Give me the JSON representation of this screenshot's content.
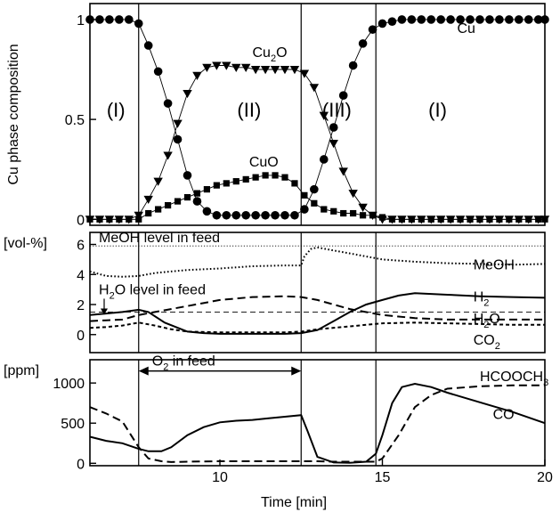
{
  "chart_data": {
    "type": "line",
    "xlabel": "Time [min]",
    "xlim": [
      6,
      20
    ],
    "xticks": [
      {
        "value": 10,
        "label": "10"
      },
      {
        "value": 15,
        "label": "15"
      },
      {
        "value": 20,
        "label": "20"
      }
    ],
    "event_times": [
      7.5,
      12.5,
      14.8
    ],
    "panels": [
      {
        "id": "phase",
        "type": "line",
        "ylabel": "Cu phase composition",
        "ylim": [
          -0.03,
          1.08
        ],
        "yticks": [
          {
            "value": 0,
            "label": "0"
          },
          {
            "value": 0.5,
            "label": "0.5"
          },
          {
            "value": 1,
            "label": "1"
          }
        ],
        "region_labels": [
          {
            "label": "(I)",
            "x": 6.8,
            "y": 0.55
          },
          {
            "label": "(II)",
            "x": 10.9,
            "y": 0.55
          },
          {
            "label": "(III)",
            "x": 13.6,
            "y": 0.55
          },
          {
            "label": "(I)",
            "x": 16.7,
            "y": 0.55
          }
        ],
        "series": [
          {
            "name": "Cu",
            "marker": "circle",
            "label": {
              "text": "Cu",
              "sub": "",
              "tail": "",
              "x": 17.3,
              "y": 0.96
            },
            "x": [
              6.0,
              6.3,
              6.6,
              6.9,
              7.2,
              7.5,
              7.8,
              8.1,
              8.4,
              8.7,
              9.0,
              9.3,
              9.6,
              9.9,
              10.2,
              10.5,
              10.8,
              11.1,
              11.4,
              11.7,
              12.0,
              12.3,
              12.6,
              12.9,
              13.2,
              13.5,
              13.8,
              14.1,
              14.4,
              14.7,
              15.0,
              15.3,
              15.6,
              15.9,
              16.2,
              16.5,
              16.8,
              17.1,
              17.4,
              17.7,
              18.0,
              18.3,
              18.6,
              18.9,
              19.2,
              19.5,
              19.8,
              20.0
            ],
            "y": [
              1.0,
              1.0,
              1.0,
              1.0,
              1.0,
              0.98,
              0.87,
              0.74,
              0.58,
              0.4,
              0.22,
              0.09,
              0.04,
              0.02,
              0.02,
              0.02,
              0.02,
              0.02,
              0.02,
              0.02,
              0.02,
              0.02,
              0.05,
              0.15,
              0.3,
              0.46,
              0.62,
              0.77,
              0.88,
              0.95,
              0.98,
              0.99,
              1.0,
              1.0,
              1.0,
              1.0,
              1.0,
              1.0,
              1.0,
              1.0,
              1.0,
              1.0,
              1.0,
              1.0,
              1.0,
              1.0,
              1.0,
              1.0
            ]
          },
          {
            "name": "Cu2O",
            "marker": "triangle-down",
            "label": {
              "text": "Cu",
              "sub": "2",
              "tail": "O",
              "x": 11.0,
              "y": 0.84
            },
            "x": [
              6.0,
              6.3,
              6.6,
              6.9,
              7.2,
              7.5,
              7.8,
              8.1,
              8.4,
              8.7,
              9.0,
              9.3,
              9.6,
              9.9,
              10.2,
              10.5,
              10.8,
              11.1,
              11.4,
              11.7,
              12.0,
              12.3,
              12.6,
              12.9,
              13.2,
              13.5,
              13.8,
              14.1,
              14.4,
              14.7,
              15.0,
              15.3,
              15.6,
              15.9,
              16.2,
              16.5,
              16.8,
              17.1,
              17.4,
              17.7,
              18.0,
              18.3,
              18.6,
              18.9,
              19.2,
              19.5,
              19.8,
              20.0
            ],
            "y": [
              0.0,
              0.0,
              0.0,
              0.0,
              0.0,
              0.02,
              0.1,
              0.19,
              0.32,
              0.48,
              0.63,
              0.72,
              0.76,
              0.77,
              0.77,
              0.76,
              0.76,
              0.75,
              0.75,
              0.75,
              0.75,
              0.75,
              0.73,
              0.66,
              0.52,
              0.38,
              0.24,
              0.13,
              0.06,
              0.02,
              0.0,
              0.0,
              0.0,
              0.0,
              0.0,
              0.0,
              0.0,
              0.0,
              0.0,
              0.0,
              0.0,
              0.0,
              0.0,
              0.0,
              0.0,
              0.0,
              0.0,
              0.0
            ]
          },
          {
            "name": "CuO",
            "marker": "square",
            "label": {
              "text": "CuO",
              "sub": "",
              "tail": "",
              "x": 10.9,
              "y": 0.29
            },
            "x": [
              6.0,
              6.3,
              6.6,
              6.9,
              7.2,
              7.5,
              7.8,
              8.1,
              8.4,
              8.7,
              9.0,
              9.3,
              9.6,
              9.9,
              10.2,
              10.5,
              10.8,
              11.1,
              11.4,
              11.7,
              12.0,
              12.3,
              12.6,
              12.9,
              13.2,
              13.5,
              13.8,
              14.1,
              14.4,
              14.7,
              15.0,
              15.3,
              15.6,
              15.9,
              16.2,
              16.5,
              16.8,
              17.1,
              17.4,
              17.7,
              18.0,
              18.3,
              18.6,
              18.9,
              19.2,
              19.5,
              19.8,
              20.0
            ],
            "y": [
              0.0,
              0.0,
              0.0,
              0.0,
              0.0,
              0.0,
              0.03,
              0.05,
              0.07,
              0.09,
              0.11,
              0.13,
              0.15,
              0.17,
              0.18,
              0.19,
              0.2,
              0.21,
              0.22,
              0.22,
              0.21,
              0.18,
              0.12,
              0.08,
              0.05,
              0.04,
              0.03,
              0.03,
              0.02,
              0.02,
              0.01,
              0.0,
              0.0,
              0.0,
              0.0,
              0.0,
              0.0,
              0.0,
              0.0,
              0.0,
              0.0,
              0.0,
              0.0,
              0.0,
              0.0,
              0.0,
              0.0,
              0.0
            ]
          }
        ]
      },
      {
        "id": "gas",
        "type": "line",
        "ylabel": "[vol-%]",
        "ylim": [
          -1.2,
          6.8
        ],
        "yticks": [
          {
            "value": 0,
            "label": "0"
          },
          {
            "value": 2,
            "label": "2"
          },
          {
            "value": 4,
            "label": "4"
          },
          {
            "value": 6,
            "label": "6"
          }
        ],
        "reference_lines": [
          {
            "value": 5.9,
            "label": "MeOH level in feed",
            "style": "dotted"
          },
          {
            "value": 1.5,
            "label": "H",
            "sub": "2",
            "tail": "O level in feed",
            "style": "dashed"
          }
        ],
        "series": [
          {
            "name": "MeOH",
            "style": "dotted",
            "label": {
              "text": "MeOH",
              "sub": "",
              "tail": "",
              "x": 17.8,
              "y": 4.7
            },
            "x": [
              6.0,
              6.5,
              7.0,
              7.5,
              8.0,
              9.0,
              10.0,
              11.0,
              12.0,
              12.5,
              12.6,
              12.8,
              13.0,
              13.5,
              14.0,
              15.0,
              16.0,
              17.0,
              18.0,
              19.0,
              20.0
            ],
            "y": [
              4.2,
              3.9,
              3.85,
              3.9,
              4.1,
              4.3,
              4.4,
              4.55,
              4.6,
              4.6,
              5.2,
              5.7,
              5.8,
              5.6,
              5.4,
              5.0,
              4.85,
              4.75,
              4.7,
              4.65,
              4.7
            ]
          },
          {
            "name": "H2",
            "style": "solid",
            "label": {
              "text": "H",
              "sub": "2",
              "tail": "",
              "x": 17.8,
              "y": 2.55
            },
            "x": [
              6.0,
              6.5,
              7.0,
              7.5,
              7.8,
              8.3,
              9.0,
              9.5,
              10.0,
              11.0,
              12.0,
              12.5,
              13.0,
              13.5,
              14.0,
              14.5,
              15.0,
              15.5,
              16.0,
              17.0,
              18.0,
              19.0,
              20.0
            ],
            "y": [
              1.3,
              1.4,
              1.5,
              1.65,
              1.5,
              0.8,
              0.2,
              0.1,
              0.05,
              0.05,
              0.05,
              0.1,
              0.3,
              0.9,
              1.5,
              2.0,
              2.3,
              2.6,
              2.75,
              2.65,
              2.55,
              2.5,
              2.45
            ]
          },
          {
            "name": "H2O",
            "style": "dashed",
            "label": {
              "text": "H",
              "sub": "2",
              "tail": "O",
              "x": 17.8,
              "y": 1.1
            },
            "x": [
              6.0,
              6.5,
              7.0,
              7.5,
              8.0,
              9.0,
              10.0,
              11.0,
              12.0,
              12.5,
              13.0,
              13.5,
              14.0,
              15.0,
              16.0,
              17.0,
              18.0,
              19.0,
              20.0
            ],
            "y": [
              0.9,
              0.95,
              1.0,
              1.3,
              1.5,
              1.9,
              2.3,
              2.5,
              2.55,
              2.5,
              2.3,
              2.0,
              1.7,
              1.3,
              1.1,
              1.0,
              1.0,
              1.0,
              1.0
            ]
          },
          {
            "name": "CO2",
            "style": "short-dashed",
            "label": {
              "text": "CO",
              "sub": "2",
              "tail": "",
              "x": 17.8,
              "y": -0.3
            },
            "x": [
              6.0,
              6.5,
              7.0,
              7.5,
              8.0,
              8.5,
              9.0,
              10.0,
              11.0,
              12.0,
              12.5,
              13.0,
              14.0,
              15.0,
              16.0,
              17.0,
              18.0,
              19.0,
              20.0
            ],
            "y": [
              0.45,
              0.5,
              0.6,
              0.8,
              0.6,
              0.35,
              0.2,
              0.15,
              0.15,
              0.15,
              0.2,
              0.35,
              0.55,
              0.75,
              0.8,
              0.75,
              0.7,
              0.65,
              0.65
            ]
          }
        ]
      },
      {
        "id": "ppm",
        "type": "line",
        "ylabel": "[ppm]",
        "ylim": [
          -30,
          1290
        ],
        "yticks": [
          {
            "value": 0,
            "label": "0"
          },
          {
            "value": 500,
            "label": "500"
          },
          {
            "value": 1000,
            "label": "1000"
          }
        ],
        "annotation": {
          "label": "O",
          "sub": "2",
          "tail": " in feed",
          "from": 7.5,
          "to": 12.5,
          "y": 1150
        },
        "series": [
          {
            "name": "CO",
            "style": "solid",
            "label": {
              "text": "CO",
              "sub": "",
              "tail": "",
              "x": 18.4,
              "y": 620
            },
            "x": [
              6.0,
              6.5,
              7.0,
              7.5,
              7.8,
              8.2,
              8.5,
              9.0,
              9.5,
              10.0,
              10.5,
              11.0,
              11.5,
              12.0,
              12.5,
              12.7,
              13.0,
              13.5,
              14.0,
              14.5,
              14.8,
              15.0,
              15.3,
              15.6,
              16.0,
              16.5,
              17.0,
              18.0,
              19.0,
              20.0
            ],
            "y": [
              330,
              280,
              250,
              180,
              150,
              150,
              200,
              350,
              450,
              510,
              530,
              540,
              560,
              580,
              600,
              400,
              80,
              10,
              5,
              20,
              120,
              350,
              750,
              950,
              990,
              950,
              880,
              760,
              640,
              500
            ]
          },
          {
            "name": "HCOOCH3",
            "style": "dashed",
            "label": {
              "text": "HCOOCH",
              "sub": "3",
              "tail": "",
              "x": 18.0,
              "y": 1090
            },
            "x": [
              6.0,
              6.5,
              7.0,
              7.5,
              7.8,
              8.2,
              8.5,
              9.0,
              10.0,
              11.0,
              12.0,
              12.5,
              12.8,
              13.0,
              13.5,
              14.0,
              14.5,
              14.8,
              15.0,
              15.5,
              16.0,
              16.5,
              17.0,
              18.0,
              19.0,
              20.0
            ],
            "y": [
              700,
              620,
              520,
              200,
              60,
              25,
              15,
              20,
              25,
              25,
              25,
              25,
              25,
              25,
              20,
              20,
              20,
              20,
              60,
              350,
              700,
              850,
              930,
              960,
              970,
              970
            ]
          }
        ]
      }
    ]
  }
}
